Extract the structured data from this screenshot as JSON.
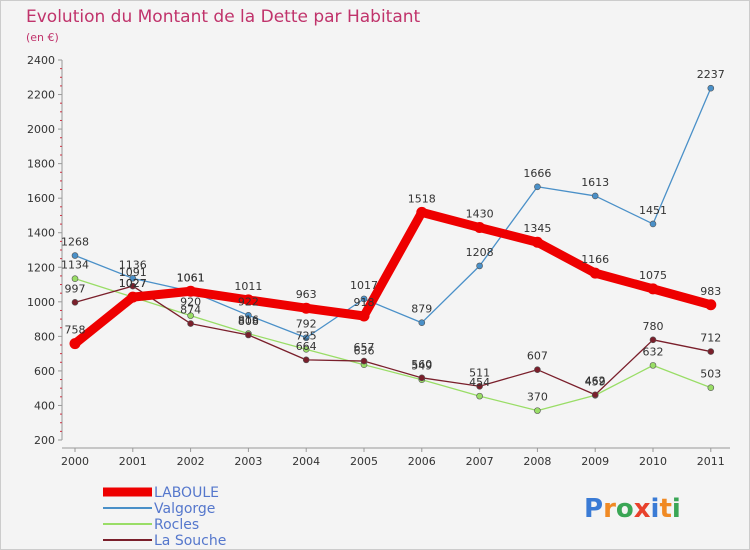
{
  "chart_data": {
    "type": "line",
    "title": "Evolution du Montant de la Dette par Habitant",
    "subtitle": "(en €)",
    "categories": [
      "2000",
      "2001",
      "2002",
      "2003",
      "2004",
      "2005",
      "2006",
      "2007",
      "2008",
      "2009",
      "2010",
      "2011"
    ],
    "ylim": [
      200,
      2400
    ],
    "yticks": [
      200,
      400,
      600,
      800,
      1000,
      1200,
      1400,
      1600,
      1800,
      2000,
      2200,
      2400
    ],
    "grid": false,
    "legend_position": "bottom-left",
    "series": [
      {
        "name": "LABOULE",
        "color": "#ee0000",
        "values": [
          758,
          1027,
          1061,
          1011,
          963,
          918,
          1518,
          1430,
          1345,
          1166,
          1075,
          983
        ]
      },
      {
        "name": "Valgorge",
        "color": "#4a90c8",
        "values": [
          1268,
          1136,
          1061,
          922,
          792,
          1017,
          879,
          1208,
          1666,
          1613,
          1451,
          2237
        ]
      },
      {
        "name": "Rocles",
        "color": "#99dd66",
        "values": [
          1134,
          1027,
          920,
          816,
          725,
          636,
          549,
          454,
          370,
          459,
          632,
          503
        ]
      },
      {
        "name": "La Souche",
        "color": "#7a1f2b",
        "values": [
          997,
          1091,
          874,
          808,
          664,
          657,
          560,
          511,
          607,
          462,
          780,
          712
        ]
      }
    ]
  },
  "logo": {
    "text": "Proxiti",
    "letter_colors": [
      "#3a7bd5",
      "#f08a24",
      "#3aa655",
      "#e8412c",
      "#3a7bd5",
      "#f08a24",
      "#3aa655"
    ]
  }
}
